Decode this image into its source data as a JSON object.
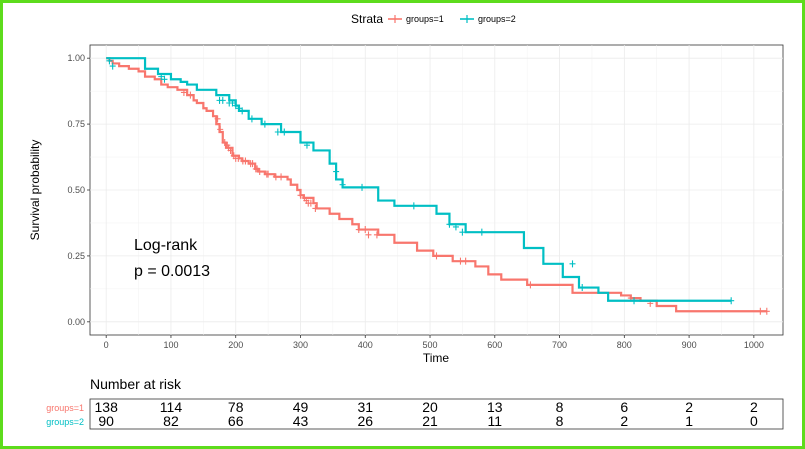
{
  "chart_data": [
    {
      "type": "line",
      "subtype": "kaplan-meier-step",
      "title": "",
      "xlabel": "Time",
      "ylabel": "Survival probability",
      "xlim": [
        -25,
        1045
      ],
      "ylim": [
        -0.05,
        1.05
      ],
      "x_ticks": [
        0,
        100,
        200,
        300,
        400,
        500,
        600,
        700,
        800,
        900,
        1000
      ],
      "y_ticks": [
        0,
        0.25,
        0.5,
        0.75,
        1
      ],
      "y_tick_labels": [
        "0.00",
        "0.25",
        "0.50",
        "0.75",
        "1.00"
      ],
      "grid": true,
      "legend": {
        "title": "Strata",
        "placement": "top",
        "entries": [
          "groups=1",
          "groups=2"
        ]
      },
      "annotations": [
        "Log-rank",
        "p = 0.0013"
      ],
      "series": [
        {
          "name": "groups=1",
          "color": "#f8766d",
          "x": [
            0,
            5,
            10,
            20,
            35,
            50,
            60,
            75,
            85,
            95,
            110,
            125,
            135,
            140,
            150,
            155,
            165,
            170,
            175,
            180,
            185,
            195,
            205,
            210,
            220,
            230,
            235,
            245,
            260,
            280,
            285,
            295,
            300,
            305,
            320,
            325,
            345,
            360,
            380,
            390,
            420,
            445,
            480,
            505,
            535,
            570,
            590,
            610,
            650,
            720,
            795,
            810,
            825,
            850,
            880,
            1020
          ],
          "y": [
            1.0,
            0.99,
            0.98,
            0.97,
            0.96,
            0.95,
            0.93,
            0.92,
            0.9,
            0.89,
            0.88,
            0.86,
            0.84,
            0.83,
            0.81,
            0.8,
            0.78,
            0.75,
            0.72,
            0.68,
            0.66,
            0.63,
            0.62,
            0.61,
            0.6,
            0.58,
            0.57,
            0.56,
            0.55,
            0.54,
            0.52,
            0.5,
            0.48,
            0.47,
            0.45,
            0.43,
            0.41,
            0.39,
            0.37,
            0.35,
            0.33,
            0.3,
            0.27,
            0.25,
            0.23,
            0.21,
            0.18,
            0.16,
            0.14,
            0.11,
            0.1,
            0.09,
            0.08,
            0.06,
            0.04,
            0.04
          ],
          "censor_x": [
            120,
            130,
            172,
            176,
            183,
            187,
            189,
            192,
            197,
            200,
            204,
            211,
            215,
            223,
            226,
            231,
            233,
            237,
            248,
            250,
            262,
            270,
            300,
            306,
            309,
            312,
            316,
            323,
            390,
            400,
            405,
            418,
            510,
            547,
            555,
            655,
            810,
            840,
            1010,
            1020
          ],
          "censor_y": [
            0.87,
            0.86,
            0.77,
            0.73,
            0.68,
            0.67,
            0.66,
            0.65,
            0.63,
            0.62,
            0.62,
            0.61,
            0.61,
            0.6,
            0.6,
            0.58,
            0.58,
            0.57,
            0.56,
            0.56,
            0.55,
            0.55,
            0.48,
            0.47,
            0.46,
            0.45,
            0.45,
            0.43,
            0.35,
            0.35,
            0.33,
            0.33,
            0.25,
            0.23,
            0.23,
            0.14,
            0.09,
            0.07,
            0.04,
            0.04
          ]
        },
        {
          "name": "groups=2",
          "color": "#00bfc4",
          "x": [
            0,
            60,
            80,
            100,
            115,
            125,
            140,
            170,
            190,
            200,
            205,
            220,
            240,
            270,
            300,
            320,
            345,
            355,
            365,
            420,
            445,
            510,
            530,
            555,
            645,
            675,
            705,
            730,
            760,
            775,
            965
          ],
          "y": [
            1.0,
            0.96,
            0.94,
            0.92,
            0.91,
            0.9,
            0.88,
            0.86,
            0.84,
            0.82,
            0.8,
            0.77,
            0.75,
            0.72,
            0.68,
            0.65,
            0.6,
            0.54,
            0.51,
            0.46,
            0.44,
            0.41,
            0.37,
            0.34,
            0.28,
            0.22,
            0.17,
            0.13,
            0.11,
            0.08,
            0.08
          ],
          "censor_x": [
            5,
            10,
            85,
            90,
            175,
            180,
            190,
            195,
            200,
            205,
            210,
            225,
            245,
            265,
            275,
            310,
            355,
            365,
            395,
            475,
            530,
            540,
            550,
            580,
            720,
            735,
            815,
            965
          ],
          "censor_y": [
            0.99,
            0.97,
            0.93,
            0.92,
            0.84,
            0.84,
            0.83,
            0.83,
            0.82,
            0.81,
            0.8,
            0.77,
            0.75,
            0.72,
            0.72,
            0.67,
            0.57,
            0.52,
            0.51,
            0.44,
            0.37,
            0.36,
            0.34,
            0.34,
            0.22,
            0.13,
            0.08,
            0.08
          ]
        }
      ]
    },
    {
      "type": "table",
      "title": "Number at risk",
      "columns": [
        0,
        100,
        200,
        300,
        400,
        500,
        600,
        700,
        800,
        900,
        1000
      ],
      "rows": [
        {
          "name": "groups=1",
          "color": "#f8766d",
          "values": [
            "138",
            "114",
            "78",
            "49",
            "31",
            "20",
            "13",
            "8",
            "6",
            "2",
            "2"
          ]
        },
        {
          "name": "groups=2",
          "color": "#00bfc4",
          "values": [
            "90",
            "82",
            "66",
            "43",
            "26",
            "21",
            "11",
            "8",
            "2",
            "1",
            "0"
          ]
        }
      ]
    }
  ]
}
